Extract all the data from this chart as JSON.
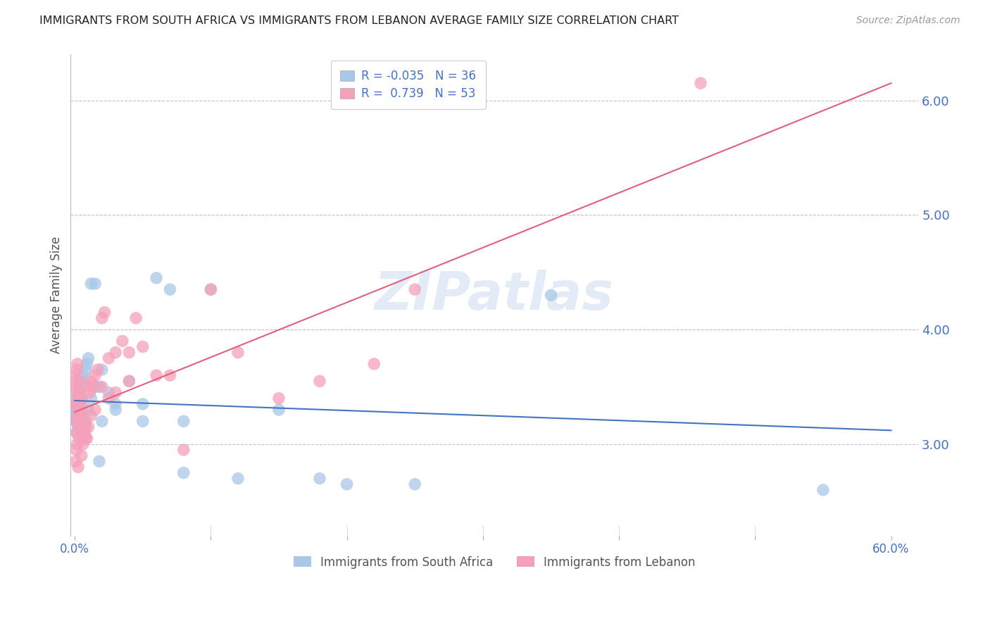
{
  "title": "IMMIGRANTS FROM SOUTH AFRICA VS IMMIGRANTS FROM LEBANON AVERAGE FAMILY SIZE CORRELATION CHART",
  "source": "Source: ZipAtlas.com",
  "ylabel": "Average Family Size",
  "xlabel_ticks": [
    "0.0%",
    "",
    "",
    "",
    "",
    "",
    "60.0%"
  ],
  "xlabel_vals": [
    0.0,
    10.0,
    20.0,
    30.0,
    40.0,
    50.0,
    60.0
  ],
  "xlabel_minor_vals": [
    10.0,
    20.0,
    30.0,
    40.0,
    50.0
  ],
  "ylabel_ticks": [
    3.0,
    4.0,
    5.0,
    6.0
  ],
  "ylim": [
    2.2,
    6.4
  ],
  "xlim": [
    -0.3,
    62.0
  ],
  "watermark": "ZIPatlas",
  "title_color": "#222222",
  "axis_color": "#4472c4",
  "grid_color": "#c0c0c0",
  "south_africa_color": "#a8c8e8",
  "south_africa_line_color": "#4472c4",
  "lebanon_color": "#f5a0b8",
  "lebanon_line_color": "#e06080",
  "south_africa_x": [
    0.05,
    0.08,
    0.1,
    0.12,
    0.15,
    0.18,
    0.2,
    0.22,
    0.25,
    0.28,
    0.3,
    0.35,
    0.4,
    0.45,
    0.5,
    0.55,
    0.6,
    0.7,
    0.8,
    0.9,
    1.0,
    1.2,
    1.5,
    1.8,
    2.0,
    2.5,
    3.0,
    4.0,
    5.0,
    6.0,
    7.0,
    8.0,
    10.0,
    15.0,
    20.0,
    55.0
  ],
  "south_africa_y": [
    3.3,
    3.25,
    3.2,
    3.35,
    3.4,
    3.3,
    3.25,
    3.35,
    3.2,
    3.15,
    3.3,
    3.45,
    3.5,
    3.55,
    3.4,
    3.35,
    3.6,
    3.55,
    3.65,
    3.7,
    3.75,
    4.4,
    4.4,
    3.5,
    3.65,
    3.45,
    3.35,
    3.55,
    3.35,
    4.45,
    4.35,
    3.2,
    4.35,
    3.3,
    2.65,
    2.6
  ],
  "south_africa_x2": [
    0.05,
    0.1,
    0.15,
    0.2,
    0.25,
    0.3,
    0.35,
    0.4,
    0.5,
    0.6,
    0.8,
    1.0,
    1.2,
    1.5,
    1.8,
    2.0,
    3.0,
    5.0,
    8.0,
    12.0,
    18.0,
    25.0,
    35.0
  ],
  "south_africa_y2": [
    3.35,
    3.2,
    3.1,
    3.25,
    3.15,
    3.3,
    3.45,
    3.35,
    3.25,
    3.1,
    3.2,
    3.3,
    3.4,
    3.5,
    2.85,
    3.2,
    3.3,
    3.2,
    2.75,
    2.7,
    2.7,
    2.65,
    4.3
  ],
  "lebanon_x": [
    0.05,
    0.08,
    0.1,
    0.12,
    0.15,
    0.18,
    0.2,
    0.25,
    0.28,
    0.3,
    0.35,
    0.4,
    0.45,
    0.5,
    0.55,
    0.6,
    0.7,
    0.8,
    0.9,
    1.0,
    1.1,
    1.2,
    1.3,
    1.5,
    1.7,
    2.0,
    2.2,
    2.5,
    3.0,
    3.5,
    4.0,
    4.5,
    5.0,
    6.0,
    7.0,
    8.0,
    10.0,
    12.0,
    15.0,
    18.0,
    22.0,
    25.0,
    46.0
  ],
  "lebanon_y": [
    3.6,
    3.55,
    3.5,
    3.45,
    3.65,
    3.35,
    3.7,
    3.4,
    3.3,
    3.45,
    3.55,
    3.35,
    3.25,
    3.4,
    3.3,
    3.2,
    3.1,
    3.15,
    3.05,
    3.5,
    3.45,
    3.55,
    3.5,
    3.6,
    3.65,
    4.1,
    4.15,
    3.75,
    3.8,
    3.9,
    3.8,
    4.1,
    3.85,
    3.6,
    3.6,
    2.95,
    4.35,
    3.8,
    3.4,
    3.55,
    3.7,
    4.35,
    6.15
  ],
  "lebanon_x2": [
    0.05,
    0.08,
    0.1,
    0.12,
    0.15,
    0.18,
    0.2,
    0.25,
    0.3,
    0.35,
    0.4,
    0.5,
    0.6,
    0.7,
    0.8,
    1.0,
    1.2,
    1.5,
    2.0,
    2.5,
    3.0,
    4.0
  ],
  "lebanon_y2": [
    3.35,
    2.85,
    3.2,
    2.95,
    3.1,
    3.0,
    3.25,
    2.8,
    3.05,
    3.15,
    3.2,
    2.9,
    3.0,
    3.1,
    3.05,
    3.15,
    3.25,
    3.3,
    3.5,
    3.4,
    3.45,
    3.55
  ],
  "south_africa_trend": {
    "x_start": 0.0,
    "x_end": 60.0,
    "y_start": 3.38,
    "y_end": 3.12
  },
  "lebanon_trend": {
    "x_start": 0.0,
    "x_end": 60.0,
    "y_start": 3.28,
    "y_end": 6.15
  },
  "legend_r1": "R = -0.035",
  "legend_n1": "N = 36",
  "legend_r2": "R =  0.739",
  "legend_n2": "N = 53",
  "legend_label1": "Immigrants from South Africa",
  "legend_label2": "Immigrants from Lebanon"
}
